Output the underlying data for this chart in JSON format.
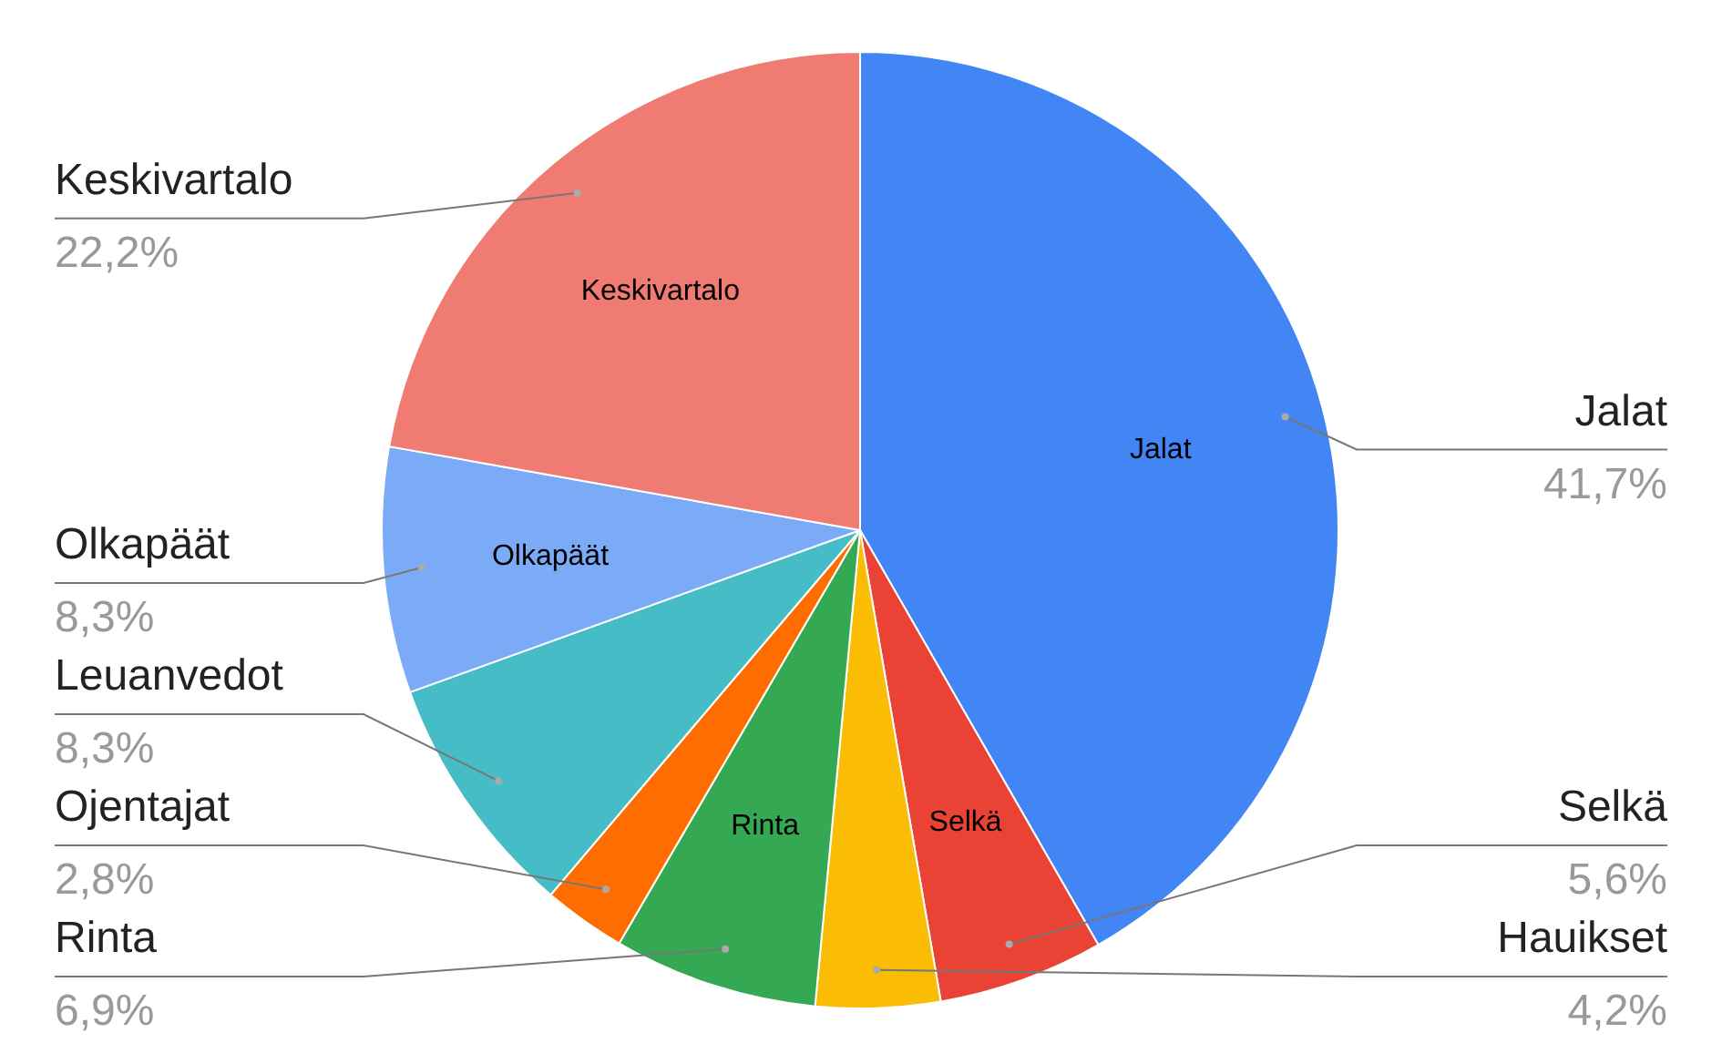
{
  "chart_data": {
    "type": "pie",
    "categories": [
      "Jalat",
      "Selkä",
      "Hauikset",
      "Rinta",
      "Ojentajat",
      "Leuanvedot",
      "Olkapäät",
      "Keskivartalo"
    ],
    "values": [
      41.7,
      5.6,
      4.2,
      6.9,
      2.8,
      8.3,
      8.3,
      22.2
    ],
    "colors": [
      "#4285f4",
      "#ea4335",
      "#fbbc04",
      "#34a853",
      "#ff6d01",
      "#46bdc6",
      "#7baaf7",
      "#f07b72"
    ],
    "value_labels": [
      "41,7%",
      "5,6%",
      "4,2%",
      "6,9%",
      "2,8%",
      "8,3%",
      "8,3%",
      "22,2%"
    ],
    "legend": false
  }
}
